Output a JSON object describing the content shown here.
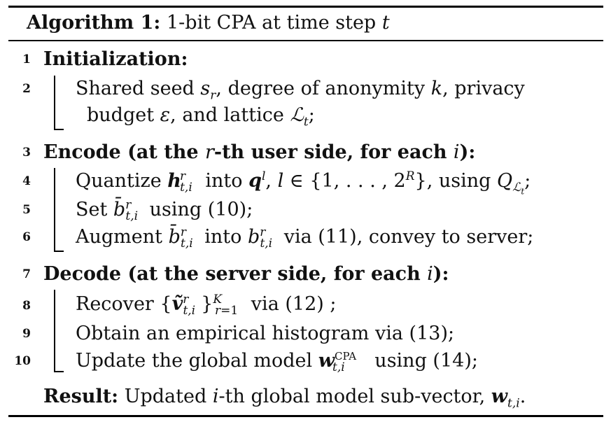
{
  "algorithm": {
    "caption_label": "Algorithm 1:",
    "caption_text": "1-bit CPA at time step t",
    "lines": [
      {
        "n": "1",
        "text": "Initialization:"
      },
      {
        "n": "2",
        "text": "Shared seed s_r, degree of anonymity k, privacy budget ε, and lattice L_t;"
      },
      {
        "n": "3",
        "text": "Encode (at the r-th user side, for each i):"
      },
      {
        "n": "4",
        "text": "Quantize h^r_{t,i} into q^l, l ∈ {1, . . . , 2^R}, using Q_{L_t};"
      },
      {
        "n": "5",
        "text": "Set b̄^r_{t,i} using (10);"
      },
      {
        "n": "6",
        "text": "Augment b̄^r_{t,i} into b^r_{t,i} via (11), convey to server;"
      },
      {
        "n": "7",
        "text": "Decode (at the server side, for each i):"
      },
      {
        "n": "8",
        "text": "Recover {ṽ^r_{t,i}}^K_{r=1} via (12) ;"
      },
      {
        "n": "9",
        "text": "Obtain an empirical histogram via (13);"
      },
      {
        "n": "10",
        "text": "Update the global model w^CPA_{t,i} using (14);"
      }
    ],
    "result_label": "Result:",
    "result_text": "Updated i-th global model sub-vector, w_{t,i}."
  }
}
